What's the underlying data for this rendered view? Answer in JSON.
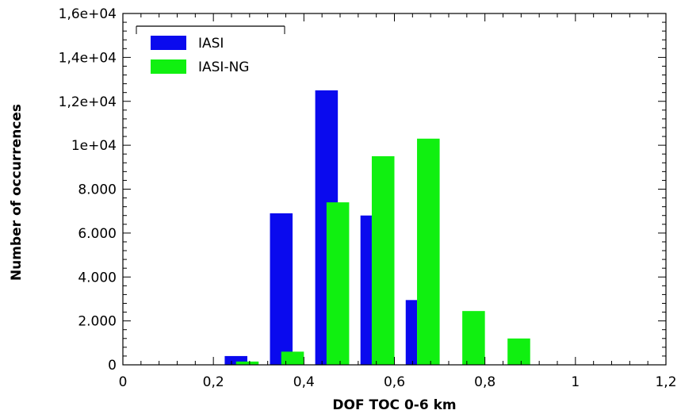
{
  "chart_data": {
    "type": "bar",
    "xlabel": "DOF TOC 0-6 km",
    "ylabel": "Number of occurrences",
    "xlim": [
      0,
      1.2
    ],
    "ylim": [
      0,
      16000
    ],
    "x_ticks": [
      0,
      0.2,
      0.4,
      0.6,
      0.8,
      1,
      1.2
    ],
    "x_tick_labels": [
      "0",
      "0,2",
      "0,4",
      "0,6",
      "0,8",
      "1",
      "1,2"
    ],
    "y_ticks": [
      0,
      2000,
      4000,
      6000,
      8000,
      10000,
      12000,
      14000,
      16000
    ],
    "y_tick_labels": [
      "0",
      "2.000",
      "4.000",
      "6.000",
      "8.000",
      "1e+04",
      "1,2e+04",
      "1,4e+04",
      "1,6e+04"
    ],
    "legend_position": "top-left",
    "grid": false,
    "series": [
      {
        "name": "IASI",
        "color": "#0a0aee",
        "bins": [
          {
            "x0": 0.225,
            "x1": 0.275,
            "value": 400
          },
          {
            "x0": 0.325,
            "x1": 0.375,
            "value": 6900
          },
          {
            "x0": 0.425,
            "x1": 0.475,
            "value": 12500
          },
          {
            "x0": 0.525,
            "x1": 0.55,
            "value": 6800
          },
          {
            "x0": 0.625,
            "x1": 0.65,
            "value": 2950
          }
        ]
      },
      {
        "name": "IASI-NG",
        "color": "#10f010",
        "bins": [
          {
            "x0": 0.25,
            "x1": 0.3,
            "value": 150
          },
          {
            "x0": 0.35,
            "x1": 0.4,
            "value": 600
          },
          {
            "x0": 0.45,
            "x1": 0.5,
            "value": 7400
          },
          {
            "x0": 0.55,
            "x1": 0.6,
            "value": 9500
          },
          {
            "x0": 0.65,
            "x1": 0.7,
            "value": 10300
          },
          {
            "x0": 0.75,
            "x1": 0.8,
            "value": 2450
          },
          {
            "x0": 0.85,
            "x1": 0.9,
            "value": 1200
          }
        ]
      }
    ]
  }
}
